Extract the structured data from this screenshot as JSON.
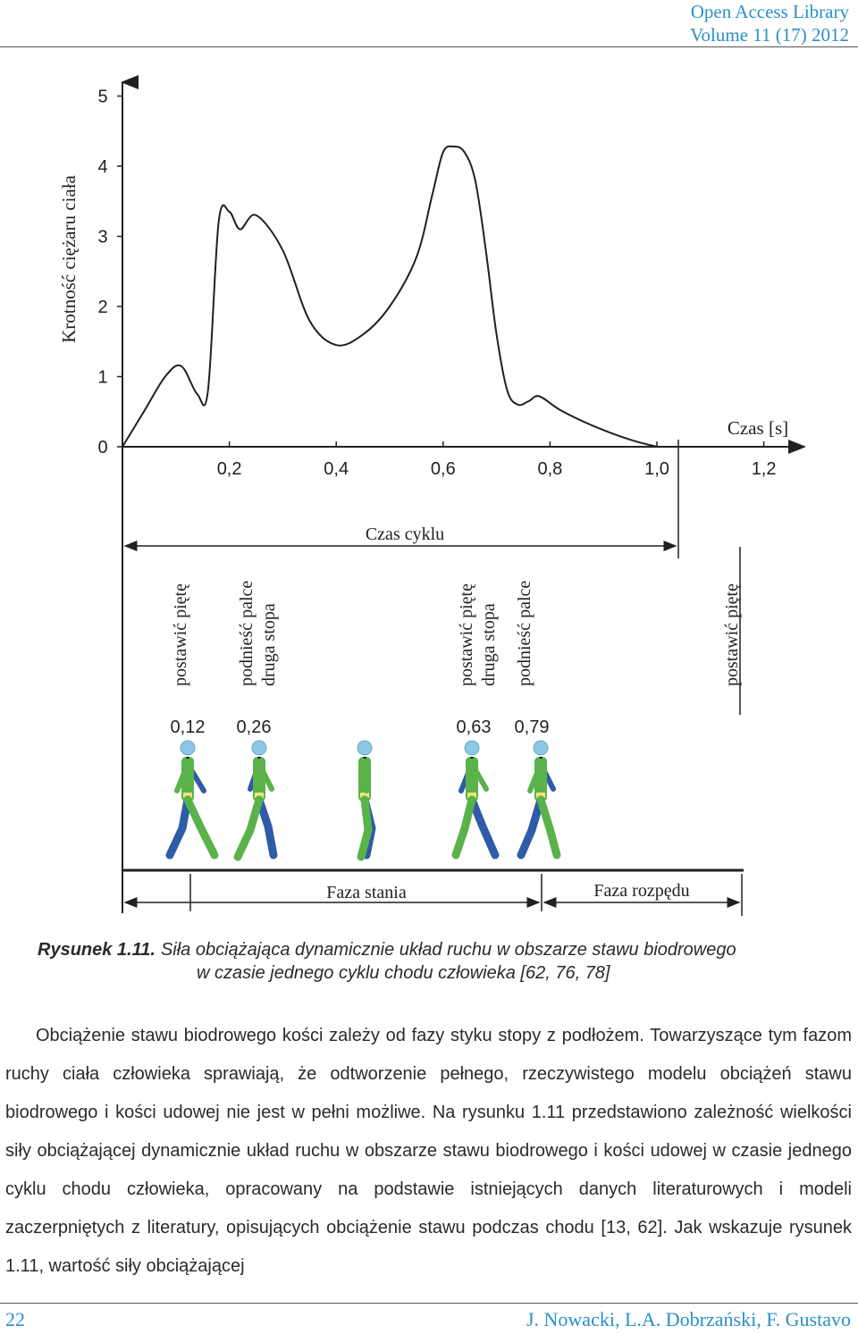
{
  "header": {
    "line1": "Open Access Library",
    "line2": "Volume 11 (17) 2012"
  },
  "figure": {
    "y_axis_label": "Krotność ciężaru ciała",
    "x_axis_label": "Czas [s]",
    "y_ticks": [
      "0",
      "1",
      "2",
      "3",
      "4",
      "5"
    ],
    "x_ticks": [
      "0,2",
      "0,4",
      "0,6",
      "0,8",
      "1,0",
      "1,2"
    ],
    "cycle_label": "Czas cyklu",
    "events": [
      {
        "lines": [
          "postawić piętę"
        ],
        "time": "0,12"
      },
      {
        "lines": [
          "podnieść palce",
          "druga stopa"
        ],
        "time": "0,26"
      },
      {
        "lines": [
          "postawić piętę",
          "druga stopa"
        ],
        "time": "0,63"
      },
      {
        "lines": [
          "podnieść palce"
        ],
        "time": "0,79"
      },
      {
        "lines": [
          "postawić piętę"
        ],
        "time": ""
      }
    ],
    "phases": {
      "stance": "Faza stania",
      "swing": "Faza rozpędu"
    },
    "colors": {
      "leg_near": "#5ab24a",
      "leg_far": "#2f5ba8",
      "head": "#8ec7e6",
      "line": "#231f20"
    }
  },
  "chart_data": {
    "type": "line",
    "title": "",
    "xlabel": "Czas [s]",
    "ylabel": "Krotność ciężaru ciała",
    "xlim": [
      0,
      1.25
    ],
    "ylim": [
      0,
      5
    ],
    "x": [
      0,
      0.04,
      0.08,
      0.11,
      0.14,
      0.16,
      0.18,
      0.2,
      0.22,
      0.25,
      0.3,
      0.35,
      0.4,
      0.45,
      0.5,
      0.55,
      0.58,
      0.6,
      0.62,
      0.64,
      0.66,
      0.68,
      0.7,
      0.72,
      0.74,
      0.76,
      0.78,
      0.82,
      0.88,
      0.95,
      1.0
    ],
    "series": [
      {
        "values": [
          0,
          0.5,
          1.0,
          1.15,
          0.75,
          0.8,
          3.2,
          3.35,
          3.1,
          3.3,
          2.8,
          1.8,
          1.45,
          1.6,
          2.0,
          2.7,
          3.6,
          4.2,
          4.28,
          4.2,
          3.8,
          2.8,
          1.6,
          0.8,
          0.6,
          0.65,
          0.72,
          0.52,
          0.3,
          0.1,
          0
        ]
      }
    ]
  },
  "caption": {
    "label": "Rysunek 1.11.",
    "line1": "Siła obciążająca dynamicznie układ ruchu w obszarze stawu biodrowego",
    "line2": "w czasie jednego cyklu chodu człowieka [62, 76, 78]"
  },
  "body": {
    "paragraph": "Obciążenie stawu biodrowego kości zależy od fazy styku stopy z podłożem. Towarzyszące tym fazom ruchy ciała człowieka sprawiają, że odtworzenie pełnego, rzeczywistego modelu obciążeń stawu biodrowego i kości udowej nie jest w pełni możliwe. Na rysunku 1.11 przedstawiono zależność wielkości siły obciążającej dynamicznie układ ruchu w obszarze stawu biodrowego i kości udowej w czasie jednego cyklu chodu człowieka, opracowany na podstawie istniejących danych literaturowych i modeli zaczerpniętych z literatury, opisujących obciążenie stawu podczas chodu [13, 62]. Jak wskazuje rysunek 1.11, wartość siły obciążającej"
  },
  "footer": {
    "page": "22",
    "authors": "J. Nowacki, L.A. Dobrzański, F. Gustavo"
  }
}
